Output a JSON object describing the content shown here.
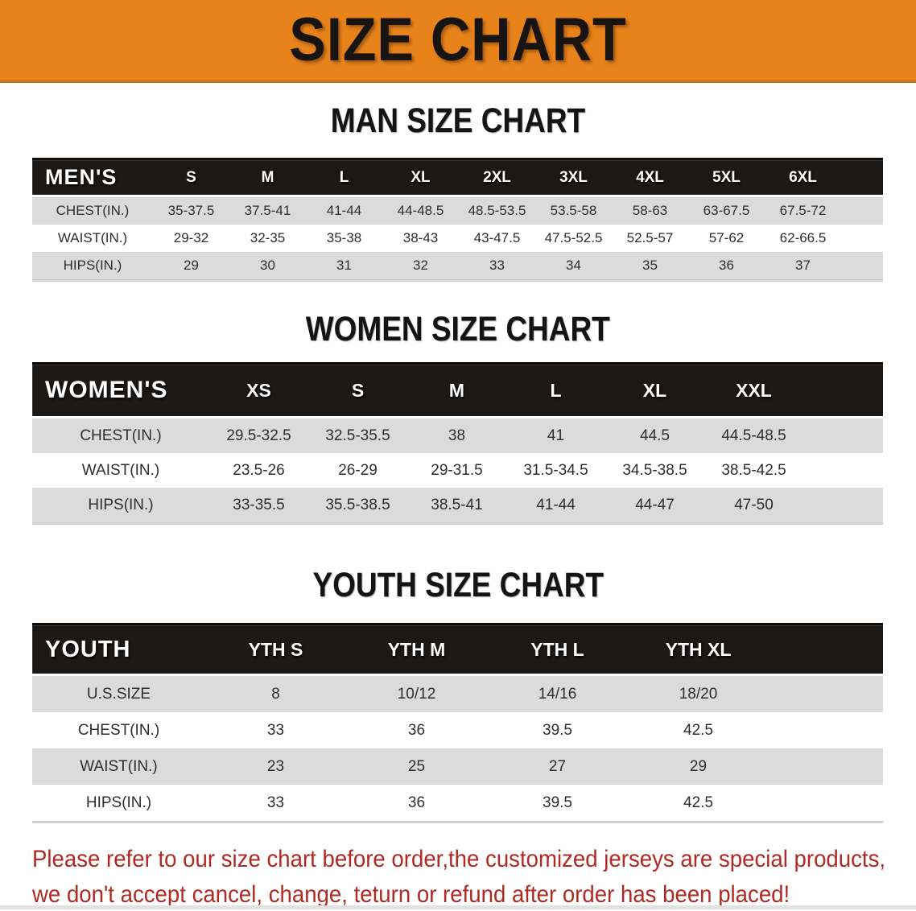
{
  "banner": {
    "title": "SIZE CHART"
  },
  "colors": {
    "banner_bg": "#E8831C",
    "table_header_bg": "#1B1816",
    "row_alt_gray": "#DBDBDB",
    "footer_red": "#B02A23"
  },
  "sections": [
    {
      "heading": "MAN SIZE CHART",
      "table": {
        "label": "MEN'S",
        "columns": [
          "S",
          "M",
          "L",
          "XL",
          "2XL",
          "3XL",
          "4XL",
          "5XL",
          "6XL"
        ],
        "rows": [
          {
            "label": "CHEST(IN.)",
            "values": [
              "35-37.5",
              "37.5-41",
              "41-44",
              "44-48.5",
              "48.5-53.5",
              "53.5-58",
              "58-63",
              "63-67.5",
              "67.5-72"
            ]
          },
          {
            "label": "WAIST(IN.)",
            "values": [
              "29-32",
              "32-35",
              "35-38",
              "38-43",
              "43-47.5",
              "47.5-52.5",
              "52.5-57",
              "57-62",
              "62-66.5"
            ]
          },
          {
            "label": "HIPS(IN.)",
            "values": [
              "29",
              "30",
              "31",
              "32",
              "33",
              "34",
              "35",
              "36",
              "37"
            ]
          }
        ]
      }
    },
    {
      "heading": "WOMEN SIZE CHART",
      "table": {
        "label": "WOMEN'S",
        "columns": [
          "XS",
          "S",
          "M",
          "L",
          "XL",
          "XXL"
        ],
        "rows": [
          {
            "label": "CHEST(IN.)",
            "values": [
              "29.5-32.5",
              "32.5-35.5",
              "38",
              "41",
              "44.5",
              "44.5-48.5"
            ]
          },
          {
            "label": "WAIST(IN.)",
            "values": [
              "23.5-26",
              "26-29",
              "29-31.5",
              "31.5-34.5",
              "34.5-38.5",
              "38.5-42.5"
            ]
          },
          {
            "label": "HIPS(IN.)",
            "values": [
              "33-35.5",
              "35.5-38.5",
              "38.5-41",
              "41-44",
              "44-47",
              "47-50"
            ]
          }
        ]
      }
    },
    {
      "heading": "YOUTH SIZE CHART",
      "table": {
        "label": "YOUTH",
        "columns": [
          "YTH S",
          "YTH M",
          "YTH L",
          "YTH XL"
        ],
        "rows": [
          {
            "label": "U.S.SIZE",
            "values": [
              "8",
              "10/12",
              "14/16",
              "18/20"
            ]
          },
          {
            "label": "CHEST(IN.)",
            "values": [
              "33",
              "36",
              "39.5",
              "42.5"
            ]
          },
          {
            "label": "WAIST(IN.)",
            "values": [
              "23",
              "25",
              "27",
              "29"
            ]
          },
          {
            "label": "HIPS(IN.)",
            "values": [
              "33",
              "36",
              "39.5",
              "42.5"
            ]
          }
        ]
      }
    }
  ],
  "footer": {
    "line1": "Please refer to our size chart before order,the customized jerseys are special products,",
    "line2": "we don't accept cancel, change, teturn or refund after order has been placed!"
  }
}
